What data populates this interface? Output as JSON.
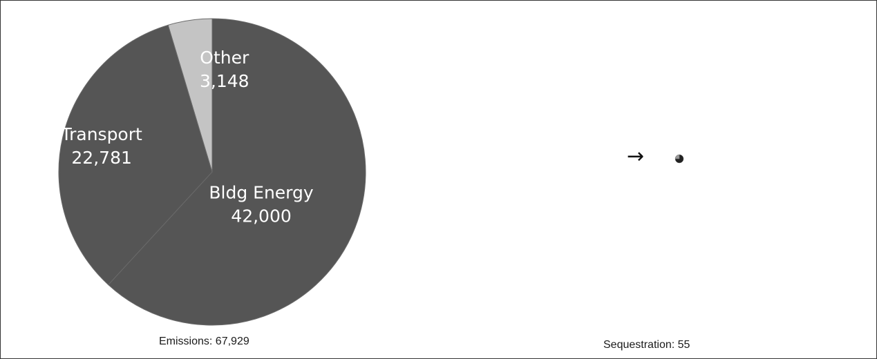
{
  "chart_data": [
    {
      "type": "pie",
      "slices": [
        {
          "label": "Bldg Energy",
          "value_text": "42,000",
          "value": 42000,
          "color": "#555555"
        },
        {
          "label": "Transport",
          "value_text": "22,781",
          "value": 22781,
          "color": "#555555"
        },
        {
          "label": "Other",
          "value_text": "3,148",
          "value": 3148,
          "color": "#c4c4c4"
        }
      ],
      "caption": "Emissions: 67,929",
      "start_angle_deg": 0,
      "direction": "clockwise"
    },
    {
      "type": "pie",
      "caption": "Sequestration: 55",
      "slices": [
        {
          "value": 0.75,
          "color": "#222222"
        },
        {
          "value": 0.25,
          "color": "#9a9a9a"
        }
      ]
    }
  ],
  "arrow_symbol": "→"
}
